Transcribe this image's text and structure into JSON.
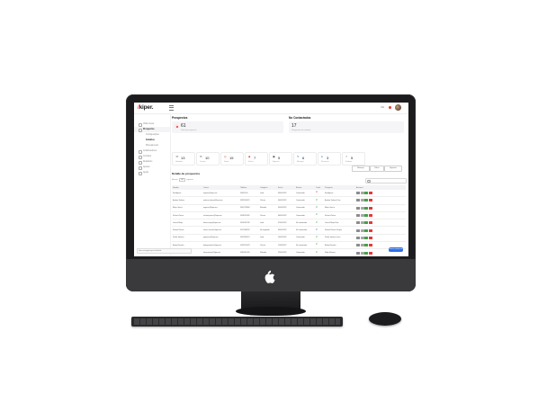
{
  "app": {
    "logo_slash": "/",
    "logo_text": "kiper."
  },
  "topbar": {
    "user_text": "Ols",
    "avatar": "user-avatar"
  },
  "sidebar": {
    "items": [
      {
        "label": "Visão Geral",
        "type": "item"
      },
      {
        "label": "Prospectos",
        "type": "active"
      },
      {
        "label": "Configurações",
        "type": "sub"
      },
      {
        "label": "Cenários",
        "type": "sub-current"
      },
      {
        "label": "Planejamento",
        "type": "sub"
      },
      {
        "label": "Colaboradores",
        "type": "item"
      },
      {
        "label": "Contatos",
        "type": "item"
      },
      {
        "label": "Relatórios",
        "type": "item"
      },
      {
        "label": "Ajustes",
        "type": "item"
      },
      {
        "label": "Ajuda",
        "type": "item"
      }
    ]
  },
  "prospectos": {
    "title": "Prospectos",
    "kpi_value": "61",
    "kpi_label": "Total de prospectos"
  },
  "no_contactados": {
    "title": "No Contactados",
    "kpi_value": "17",
    "kpi_label": "Prospectos sin contacto"
  },
  "stats": [
    {
      "icon": "phone-icon",
      "value": "13",
      "label": "Llamadas",
      "color": "#555555"
    },
    {
      "icon": "mail-icon",
      "value": "10",
      "label": "Correos",
      "color": "#555555"
    },
    {
      "icon": "target-icon",
      "value": "15",
      "label": "Visitas",
      "color": "#e53935"
    },
    {
      "icon": "tag-icon",
      "value": "7",
      "label": "Ventas",
      "color": "#e53935"
    },
    {
      "icon": "briefcase-icon",
      "value": "5",
      "label": "Negocios",
      "color": "#555555"
    },
    {
      "icon": "message-icon",
      "value": "6",
      "label": "Mensajes",
      "color": "#1e6fd9"
    },
    {
      "icon": "info-icon",
      "value": "3",
      "label": "Reuniones",
      "color": "#1e6fd9"
    },
    {
      "icon": "close-icon",
      "value": "5",
      "label": "Perdidos",
      "color": "#999999"
    }
  ],
  "buttons": {
    "message": "Mensaje",
    "filter": "Filtrar",
    "export": "Exportar"
  },
  "detail": {
    "title": "Detalle de prospectos",
    "show_label": "Mostrar",
    "show_value": "10",
    "entries_label": "registros"
  },
  "table": {
    "columns": [
      "Nombre",
      "Correo",
      "Teléfono",
      "Categoría",
      "Fecha",
      "Estatus",
      "Canal",
      "Prospecto",
      "Acciones"
    ],
    "rows": [
      {
        "name": "Ilse Aguirre",
        "email": "iaguirre@kiper.mx",
        "phone": "55432109",
        "category": "Lead",
        "date": "03/05/2022",
        "status": "Contactado",
        "channel": "red",
        "prospect": "Ilse Aguirre"
      },
      {
        "name": "Andrea Salazar",
        "email": "andrea.salazar@kiper.mx",
        "phone": "5587654321",
        "category": "Cliente",
        "date": "04/05/2022",
        "status": "Contactado",
        "channel": "green",
        "prospect": "Andrea Salazar Díaz"
      },
      {
        "name": "Mario Garcia",
        "email": "mgarcia@kiper.mx",
        "phone": "5541276890",
        "category": "Referido",
        "date": "05/05/2022",
        "status": "Contactado",
        "channel": "green",
        "prospect": "Mario García"
      },
      {
        "name": "Victoria Ponce",
        "email": "victoria.ponce@kiper.mx",
        "phone": "5598765432",
        "category": "Cliente",
        "date": "06/05/2022",
        "status": "Contactado",
        "channel": "green",
        "prospect": "Victoria Ponce"
      },
      {
        "name": "Lorena Mejía",
        "email": "lorena.mejia@kiper.mx",
        "phone": "5554321789",
        "category": "Lead",
        "date": "07/05/2022",
        "status": "No contactado",
        "channel": "green",
        "prospect": "Lorena Mejía Ruiz"
      },
      {
        "name": "Ramiro Rincón",
        "email": "ramiro.rincon@kiper.mx",
        "phone": "5512348765",
        "category": "No asignado",
        "date": "09/05/2022",
        "status": "No contactado",
        "channel": "blue",
        "prospect": "Ramiro Rincón Vargas"
      },
      {
        "name": "Pedro Jiménez",
        "email": "pjimenez@kiper.mx",
        "phone": "5567894321",
        "category": "Lead",
        "date": "10/05/2022",
        "status": "Contactado",
        "channel": "green",
        "prospect": "Pedro Jiménez León"
      },
      {
        "name": "Bailey Rosales",
        "email": "baileyrosales@kiper.mx",
        "phone": "5543215678",
        "category": "Cliente",
        "date": "11/05/2022",
        "status": "No contactado",
        "channel": "green",
        "prospect": "Bailey Rosales"
      },
      {
        "name": "Ruby Romero",
        "email": "ruby.romero@kiper.mx",
        "phone": "5589012345",
        "category": "Referido",
        "date": "12/05/2022",
        "status": "Contactado",
        "channel": "green",
        "prospect": "Ruby Romero"
      },
      {
        "name": "Ana Martínez",
        "email": "amartinez@kiper.mx",
        "phone": "5534567890",
        "category": "Lead",
        "date": "13/05/2022",
        "status": "No contactado",
        "channel": "red",
        "prospect": "Ana Martínez"
      }
    ]
  },
  "fab": {
    "label": "Nuevo prospecto"
  },
  "statusbar": {
    "url": "kiper.mx/app/prospectos/detalle"
  },
  "colors": {
    "brand": "#e53935",
    "primary": "#2f6fe4",
    "success": "#43a047"
  }
}
